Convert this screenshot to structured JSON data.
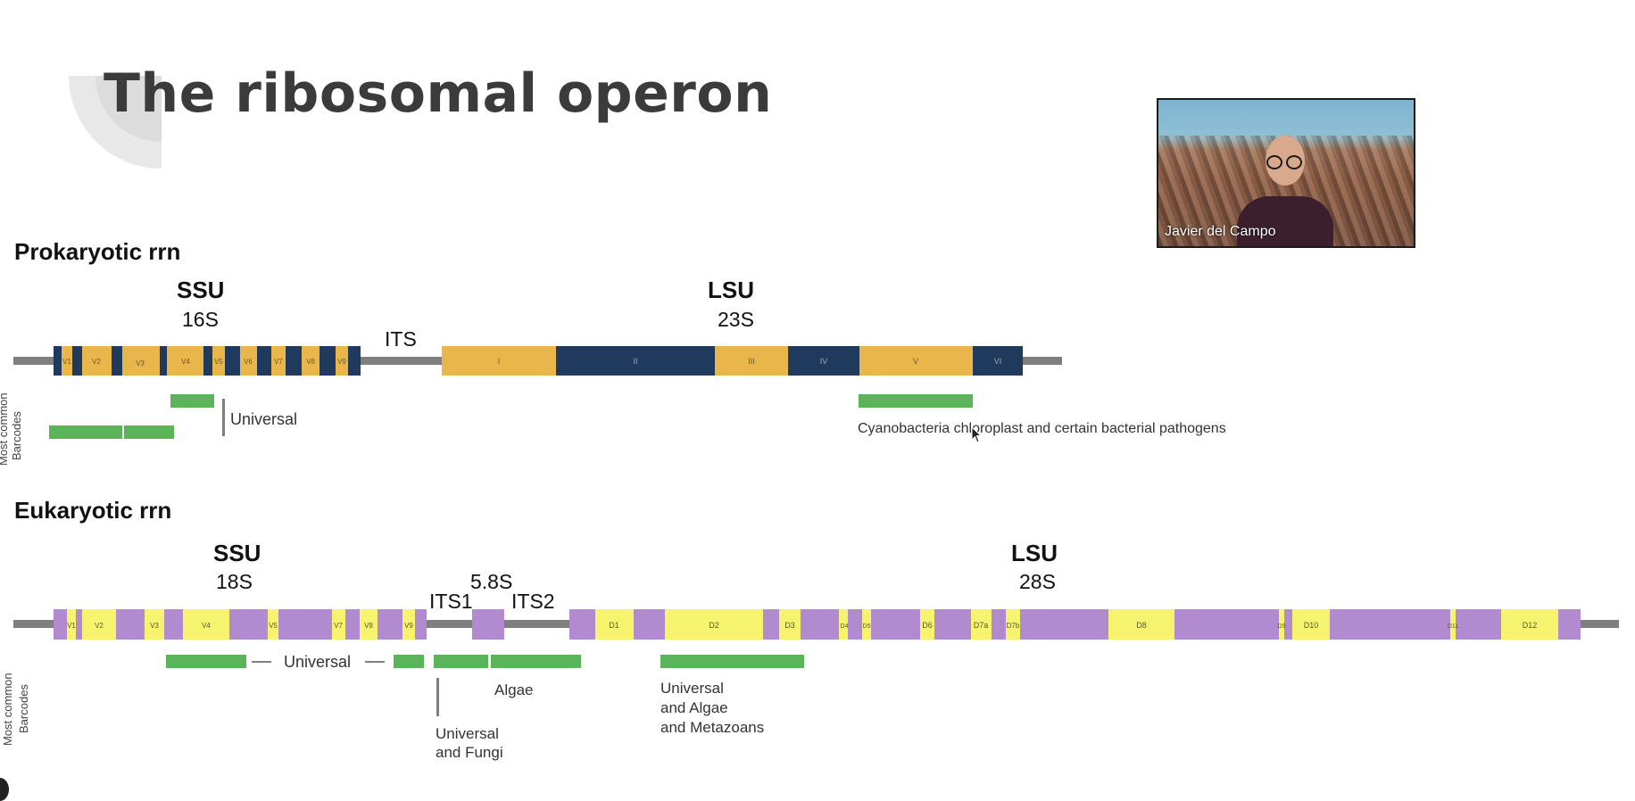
{
  "slide": {
    "title": "The ribosomal operon"
  },
  "video": {
    "participant_name": "Javier del Campo"
  },
  "prokaryotic": {
    "heading": "Prokaryotic rrn",
    "ssu_label": "SSU",
    "ssu_sub": "16S",
    "its_label": "ITS",
    "lsu_label": "LSU",
    "lsu_sub": "23S",
    "ssu_regions": [
      "V1",
      "V2",
      "V3",
      "V4",
      "V5",
      "V6",
      "V7",
      "V8",
      "V9"
    ],
    "lsu_domains": [
      "I",
      "II",
      "III",
      "IV",
      "V",
      "VI"
    ],
    "barcodes_axis_label": [
      "Most common",
      "Barcodes"
    ],
    "annotations": {
      "universal": "Universal",
      "cyanobacteria": "Cyanobacteria chloroplast and certain bacterial pathogens"
    }
  },
  "eukaryotic": {
    "heading": "Eukaryotic rrn",
    "ssu_label": "SSU",
    "ssu_sub": "18S",
    "its1_label": "ITS1",
    "its2_label": "ITS2",
    "s58_label": "5.8S",
    "lsu_label": "LSU",
    "lsu_sub": "28S",
    "ssu_regions": [
      "V1",
      "V2",
      "V3",
      "V4",
      "V5",
      "V7",
      "V8",
      "V9"
    ],
    "lsu_domains": [
      "D1",
      "D2",
      "D3",
      "D4",
      "D5",
      "D6",
      "D7a",
      "D7b",
      "D8",
      "D9",
      "D10",
      "D11",
      "D12"
    ],
    "barcodes_axis_label": [
      "Most common",
      "Barcodes"
    ],
    "annotations": {
      "universal": "Universal",
      "algae": "Algae",
      "universal_fungi": [
        "Universal",
        "and Fungi"
      ],
      "universal_algae_metazoans": [
        "Universal",
        "and Algae",
        "and Metazoans"
      ]
    }
  },
  "colors": {
    "prok_fill": "#e8b64a",
    "prok_dark": "#1f3a5c",
    "euk_fill": "#b18ad0",
    "euk_light": "#f6f36f",
    "barcode": "#5cb45a",
    "spacer": "#7f7f7f"
  }
}
